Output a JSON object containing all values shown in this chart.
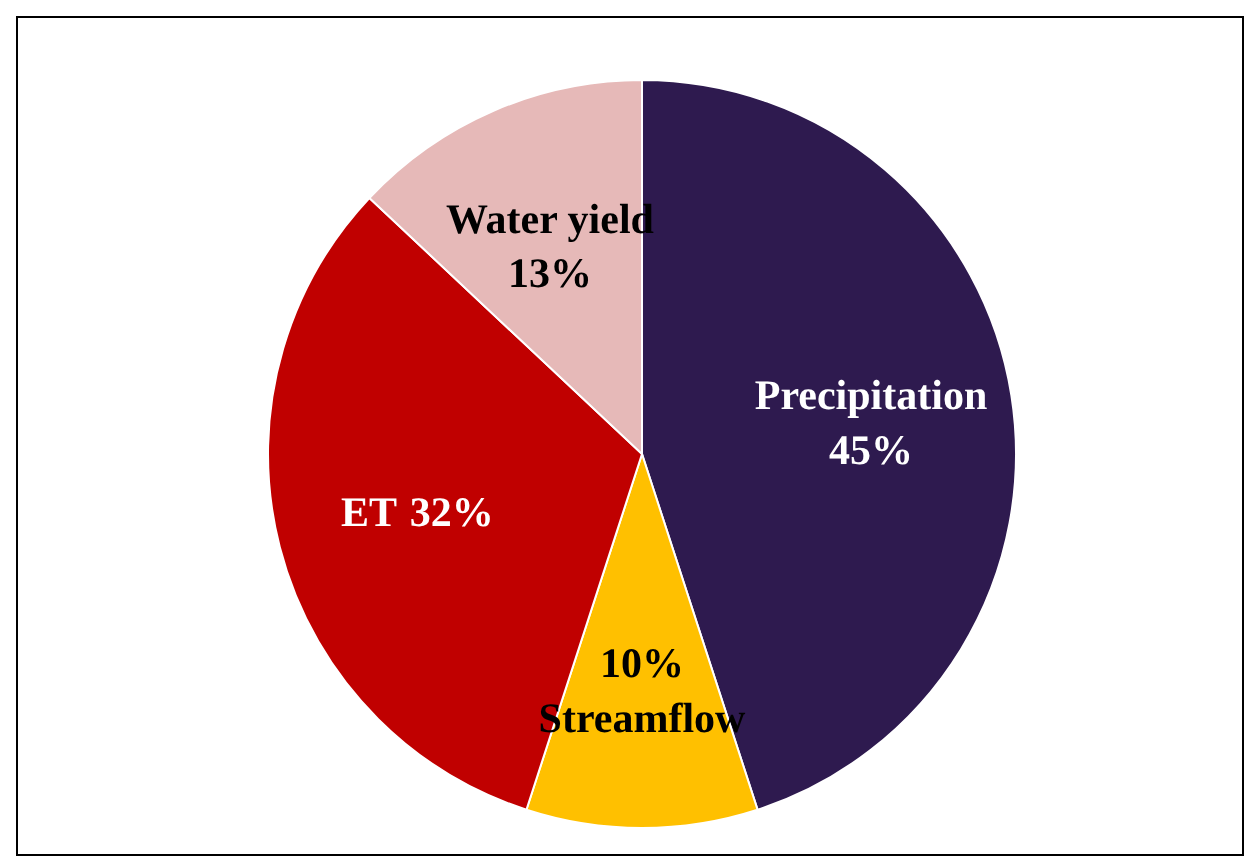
{
  "chart_data": {
    "type": "pie",
    "categories": [
      "Precipitation",
      "Streamflow",
      "ET",
      "Water yield"
    ],
    "values": [
      45,
      10,
      32,
      13
    ],
    "value_labels": [
      "45%",
      "10%",
      "32%",
      "13%"
    ],
    "colors": [
      "#2e1a4f",
      "#ffc000",
      "#c00000",
      "#e6b9b8"
    ]
  }
}
